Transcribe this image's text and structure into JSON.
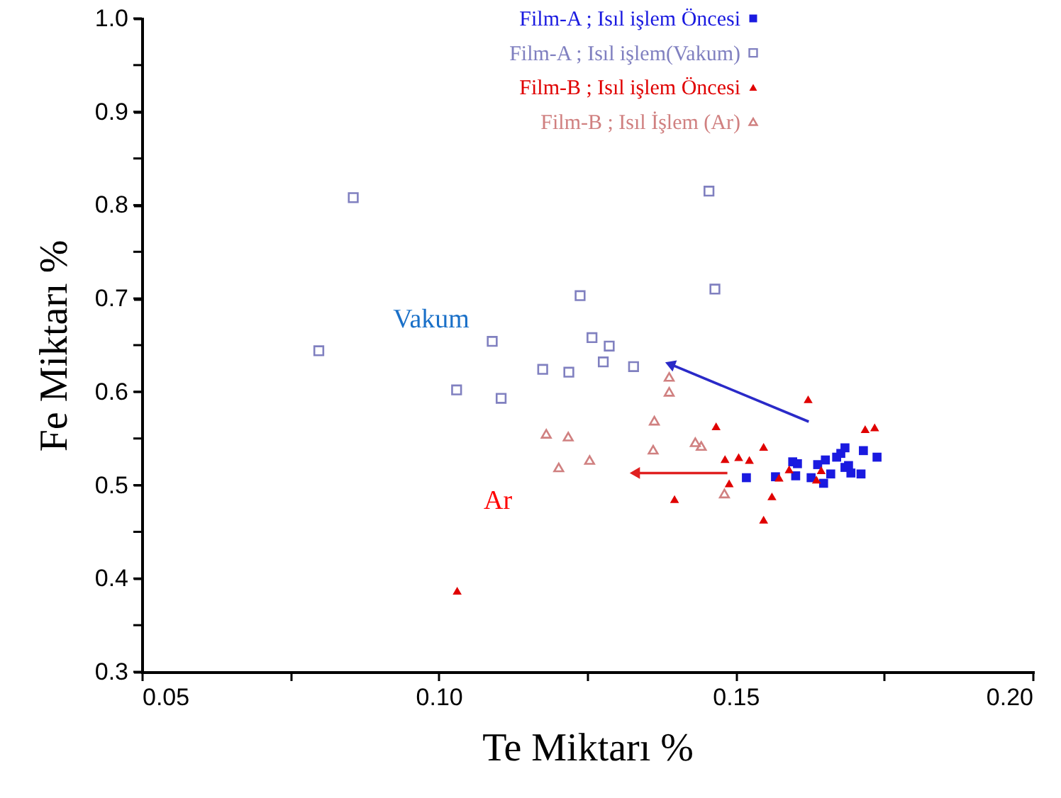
{
  "chart_data": {
    "type": "scatter",
    "xlabel": "Te Miktarı %",
    "ylabel": "Fe Miktarı %",
    "xlim": [
      0.05,
      0.2
    ],
    "ylim": [
      0.3,
      1.0
    ],
    "xticks": [
      {
        "value": 0.05,
        "label": "0.05"
      },
      {
        "value": 0.075,
        "label": null
      },
      {
        "value": 0.1,
        "label": "0.10"
      },
      {
        "value": 0.125,
        "label": null
      },
      {
        "value": 0.15,
        "label": "0.15"
      },
      {
        "value": 0.175,
        "label": null
      },
      {
        "value": 0.2,
        "label": "0.20"
      }
    ],
    "yticks": [
      {
        "value": 0.3,
        "label": "0.3"
      },
      {
        "value": 0.35,
        "label": null
      },
      {
        "value": 0.4,
        "label": "0.4"
      },
      {
        "value": 0.45,
        "label": null
      },
      {
        "value": 0.5,
        "label": "0.5"
      },
      {
        "value": 0.55,
        "label": null
      },
      {
        "value": 0.6,
        "label": "0.6"
      },
      {
        "value": 0.65,
        "label": null
      },
      {
        "value": 0.7,
        "label": "0.7"
      },
      {
        "value": 0.75,
        "label": null
      },
      {
        "value": 0.8,
        "label": "0.8"
      },
      {
        "value": 0.85,
        "label": null
      },
      {
        "value": 0.9,
        "label": "0.9"
      },
      {
        "value": 0.95,
        "label": null
      },
      {
        "value": 1.0,
        "label": "1.0"
      }
    ],
    "grid": false,
    "legend": "top",
    "series": [
      {
        "name": "Film-A ; Isıl işlem Öncesi",
        "color": "#1a1ae0",
        "marker": "square",
        "x": [
          0.1518,
          0.1567,
          0.1596,
          0.1604,
          0.1601,
          0.1627,
          0.1638,
          0.1648,
          0.1651,
          0.166,
          0.167,
          0.1677,
          0.1684,
          0.1684,
          0.169,
          0.1694,
          0.1711,
          0.1715,
          0.1738
        ],
        "values": [
          0.508,
          0.509,
          0.525,
          0.523,
          0.51,
          0.508,
          0.522,
          0.502,
          0.527,
          0.512,
          0.53,
          0.534,
          0.54,
          0.519,
          0.521,
          0.513,
          0.512,
          0.537,
          0.53
        ]
      },
      {
        "name": "Film-A ; Isıl işlem(Vakum)",
        "color": "#8080c0",
        "marker": "square",
        "x": [
          0.0856,
          0.1455,
          0.1238,
          0.1465,
          0.0798,
          0.109,
          0.103,
          0.1105,
          0.1175,
          0.1219,
          0.1277,
          0.1328,
          0.1258,
          0.1287
        ],
        "values": [
          0.808,
          0.815,
          0.703,
          0.71,
          0.644,
          0.654,
          0.602,
          0.593,
          0.624,
          0.621,
          0.632,
          0.627,
          0.658,
          0.649
        ]
      },
      {
        "name": "Film-B ; Isıl işlem Öncesi",
        "color": "#e00000",
        "marker": "triangle",
        "x": [
          0.1622,
          0.1467,
          0.1547,
          0.1482,
          0.1505,
          0.1523,
          0.1489,
          0.1561,
          0.1547,
          0.1397,
          0.1031,
          0.1573,
          0.1718,
          0.1734,
          0.159,
          0.1644,
          0.1636
        ],
        "values": [
          0.592,
          0.563,
          0.541,
          0.528,
          0.53,
          0.527,
          0.502,
          0.488,
          0.463,
          0.485,
          0.387,
          0.508,
          0.56,
          0.562,
          0.517,
          0.516,
          0.506
        ]
      },
      {
        "name": "Film-B ; Isıl İşlem (Ar)",
        "color": "#d08080",
        "marker": "triangle",
        "x": [
          0.1388,
          0.1388,
          0.1363,
          0.1361,
          0.1432,
          0.1442,
          0.1181,
          0.1218,
          0.1202,
          0.1254,
          0.1481
        ],
        "values": [
          0.616,
          0.6,
          0.569,
          0.538,
          0.546,
          0.542,
          0.555,
          0.552,
          0.519,
          0.527,
          0.491
        ]
      }
    ],
    "annotations": [
      "Vakum",
      "Ar"
    ]
  }
}
